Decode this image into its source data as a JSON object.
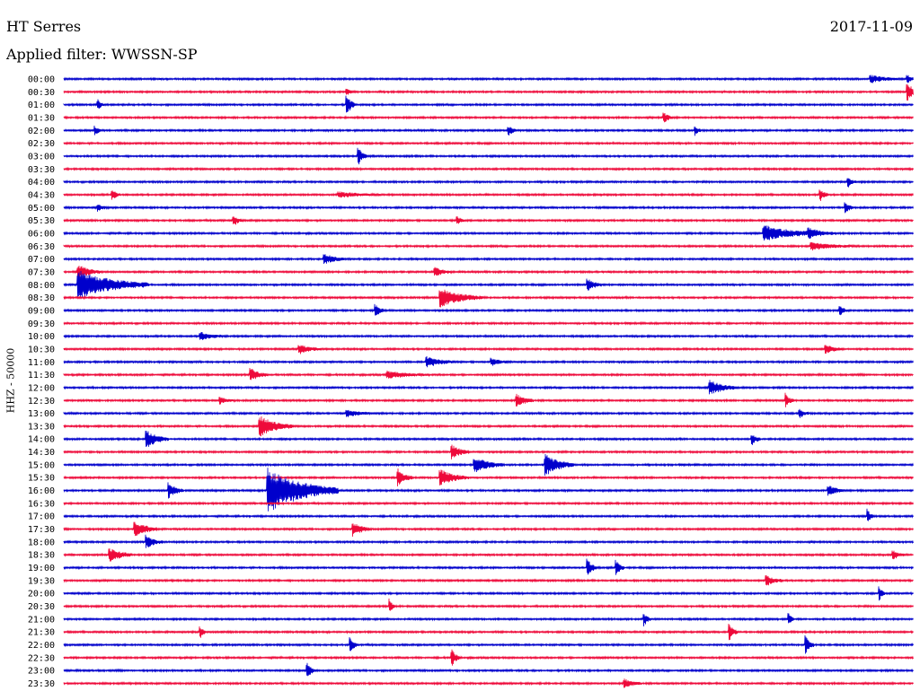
{
  "header": {
    "station": "HT Serres",
    "date": "2017-11-09",
    "filter": "Applied filter: WWSSN-SP"
  },
  "chart_data": {
    "type": "line",
    "ylabel": "HHZ - 50000",
    "row_labels": [
      "00:00",
      "00:30",
      "01:00",
      "01:30",
      "02:00",
      "02:30",
      "03:00",
      "03:30",
      "04:00",
      "04:30",
      "05:00",
      "05:30",
      "06:00",
      "06:30",
      "07:00",
      "07:30",
      "08:00",
      "08:30",
      "09:00",
      "09:30",
      "10:00",
      "10:30",
      "11:00",
      "11:30",
      "12:00",
      "12:30",
      "13:00",
      "13:30",
      "14:00",
      "14:30",
      "15:00",
      "15:30",
      "16:00",
      "16:30",
      "17:00",
      "17:30",
      "18:00",
      "18:30",
      "19:00",
      "19:30",
      "20:00",
      "20:30",
      "21:00",
      "21:30",
      "22:00",
      "22:30",
      "23:00",
      "23:30"
    ],
    "colors": [
      "#0000cc",
      "#ee0a3a"
    ],
    "row_minutes": 30,
    "events": [
      {
        "row": 0,
        "minute": 28.5,
        "amp": 4,
        "dur": 1.0
      },
      {
        "row": 0,
        "minute": 29.8,
        "amp": 5,
        "dur": 0.3
      },
      {
        "row": 1,
        "minute": 10.0,
        "amp": 3,
        "dur": 0.3
      },
      {
        "row": 1,
        "minute": 29.8,
        "amp": 10,
        "dur": 0.5
      },
      {
        "row": 2,
        "minute": 1.2,
        "amp": 6,
        "dur": 0.2
      },
      {
        "row": 2,
        "minute": 10.0,
        "amp": 12,
        "dur": 0.3
      },
      {
        "row": 3,
        "minute": 21.2,
        "amp": 6,
        "dur": 0.3
      },
      {
        "row": 4,
        "minute": 1.1,
        "amp": 6,
        "dur": 0.2
      },
      {
        "row": 4,
        "minute": 15.7,
        "amp": 6,
        "dur": 0.3
      },
      {
        "row": 4,
        "minute": 22.3,
        "amp": 6,
        "dur": 0.2
      },
      {
        "row": 6,
        "minute": 10.4,
        "amp": 10,
        "dur": 0.3
      },
      {
        "row": 8,
        "minute": 27.7,
        "amp": 6,
        "dur": 0.3
      },
      {
        "row": 9,
        "minute": 1.7,
        "amp": 6,
        "dur": 0.3
      },
      {
        "row": 9,
        "minute": 9.7,
        "amp": 3,
        "dur": 1.5
      },
      {
        "row": 9,
        "minute": 26.7,
        "amp": 8,
        "dur": 0.3
      },
      {
        "row": 10,
        "minute": 1.2,
        "amp": 4,
        "dur": 0.3
      },
      {
        "row": 10,
        "minute": 27.6,
        "amp": 7,
        "dur": 0.3
      },
      {
        "row": 11,
        "minute": 6.0,
        "amp": 6,
        "dur": 0.3
      },
      {
        "row": 11,
        "minute": 13.9,
        "amp": 4,
        "dur": 0.3
      },
      {
        "row": 12,
        "minute": 24.7,
        "amp": 9,
        "dur": 2.0
      },
      {
        "row": 12,
        "minute": 26.3,
        "amp": 6,
        "dur": 1.0
      },
      {
        "row": 13,
        "minute": 26.4,
        "amp": 4,
        "dur": 1.5
      },
      {
        "row": 14,
        "minute": 9.2,
        "amp": 6,
        "dur": 0.7
      },
      {
        "row": 15,
        "minute": 0.5,
        "amp": 8,
        "dur": 0.8
      },
      {
        "row": 15,
        "minute": 13.1,
        "amp": 5,
        "dur": 0.6
      },
      {
        "row": 16,
        "minute": 0.5,
        "amp": 16,
        "dur": 2.5
      },
      {
        "row": 16,
        "minute": 18.5,
        "amp": 7,
        "dur": 0.5
      },
      {
        "row": 17,
        "minute": 13.3,
        "amp": 10,
        "dur": 1.5
      },
      {
        "row": 18,
        "minute": 11.0,
        "amp": 8,
        "dur": 0.3
      },
      {
        "row": 18,
        "minute": 27.4,
        "amp": 6,
        "dur": 0.3
      },
      {
        "row": 20,
        "minute": 4.8,
        "amp": 5,
        "dur": 0.8
      },
      {
        "row": 21,
        "minute": 8.3,
        "amp": 5,
        "dur": 0.8
      },
      {
        "row": 21,
        "minute": 26.9,
        "amp": 5,
        "dur": 0.6
      },
      {
        "row": 22,
        "minute": 12.8,
        "amp": 6,
        "dur": 1.0
      },
      {
        "row": 22,
        "minute": 15.1,
        "amp": 4,
        "dur": 0.6
      },
      {
        "row": 23,
        "minute": 6.6,
        "amp": 7,
        "dur": 0.6
      },
      {
        "row": 23,
        "minute": 11.4,
        "amp": 4,
        "dur": 1.5
      },
      {
        "row": 24,
        "minute": 22.8,
        "amp": 8,
        "dur": 1.0
      },
      {
        "row": 25,
        "minute": 16.0,
        "amp": 7,
        "dur": 0.6
      },
      {
        "row": 25,
        "minute": 5.5,
        "amp": 4,
        "dur": 0.5
      },
      {
        "row": 25,
        "minute": 25.5,
        "amp": 8,
        "dur": 0.3
      },
      {
        "row": 26,
        "minute": 10.0,
        "amp": 4,
        "dur": 0.8
      },
      {
        "row": 26,
        "minute": 26.0,
        "amp": 5,
        "dur": 0.3
      },
      {
        "row": 27,
        "minute": 6.9,
        "amp": 12,
        "dur": 1.2
      },
      {
        "row": 28,
        "minute": 2.9,
        "amp": 10,
        "dur": 0.8
      },
      {
        "row": 28,
        "minute": 24.3,
        "amp": 7,
        "dur": 0.3
      },
      {
        "row": 29,
        "minute": 13.7,
        "amp": 8,
        "dur": 0.6
      },
      {
        "row": 30,
        "minute": 14.5,
        "amp": 9,
        "dur": 1.0
      },
      {
        "row": 30,
        "minute": 17.0,
        "amp": 12,
        "dur": 1.0
      },
      {
        "row": 31,
        "minute": 11.8,
        "amp": 10,
        "dur": 0.5
      },
      {
        "row": 31,
        "minute": 13.3,
        "amp": 9,
        "dur": 1.0
      },
      {
        "row": 32,
        "minute": 3.7,
        "amp": 8,
        "dur": 0.5
      },
      {
        "row": 32,
        "minute": 7.2,
        "amp": 25,
        "dur": 2.5
      },
      {
        "row": 32,
        "minute": 27.0,
        "amp": 6,
        "dur": 0.6
      },
      {
        "row": 34,
        "minute": 28.4,
        "amp": 8,
        "dur": 0.2
      },
      {
        "row": 35,
        "minute": 2.5,
        "amp": 9,
        "dur": 0.8
      },
      {
        "row": 35,
        "minute": 10.2,
        "amp": 8,
        "dur": 0.6
      },
      {
        "row": 36,
        "minute": 2.9,
        "amp": 7,
        "dur": 0.6
      },
      {
        "row": 37,
        "minute": 1.6,
        "amp": 8,
        "dur": 0.8
      },
      {
        "row": 37,
        "minute": 29.3,
        "amp": 5,
        "dur": 0.4
      },
      {
        "row": 38,
        "minute": 18.5,
        "amp": 10,
        "dur": 0.3
      },
      {
        "row": 38,
        "minute": 19.5,
        "amp": 9,
        "dur": 0.3
      },
      {
        "row": 39,
        "minute": 24.8,
        "amp": 6,
        "dur": 0.6
      },
      {
        "row": 40,
        "minute": 28.8,
        "amp": 8,
        "dur": 0.2
      },
      {
        "row": 41,
        "minute": 11.5,
        "amp": 8,
        "dur": 0.2
      },
      {
        "row": 42,
        "minute": 20.5,
        "amp": 8,
        "dur": 0.2
      },
      {
        "row": 42,
        "minute": 25.6,
        "amp": 8,
        "dur": 0.2
      },
      {
        "row": 43,
        "minute": 4.8,
        "amp": 8,
        "dur": 0.2
      },
      {
        "row": 43,
        "minute": 23.5,
        "amp": 10,
        "dur": 0.3
      },
      {
        "row": 44,
        "minute": 10.1,
        "amp": 8,
        "dur": 0.3
      },
      {
        "row": 44,
        "minute": 26.2,
        "amp": 10,
        "dur": 0.3
      },
      {
        "row": 45,
        "minute": 13.7,
        "amp": 10,
        "dur": 0.3
      },
      {
        "row": 46,
        "minute": 8.6,
        "amp": 8,
        "dur": 0.3
      },
      {
        "row": 47,
        "minute": 19.8,
        "amp": 5,
        "dur": 0.6
      }
    ]
  }
}
